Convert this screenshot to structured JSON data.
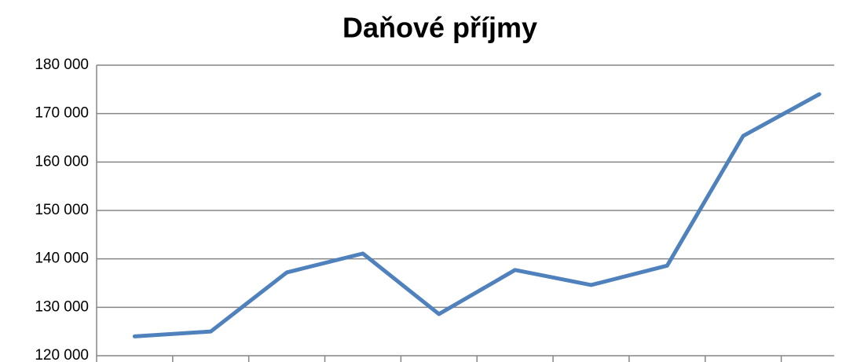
{
  "chart_data": {
    "type": "line",
    "title": "Daňové příjmy",
    "categories": [
      null,
      null,
      null,
      null,
      null,
      null,
      null,
      null,
      null,
      null
    ],
    "series": [
      {
        "name": null,
        "color": "#4f81bd",
        "values": [
          124000,
          125000,
          137200,
          141100,
          128600,
          137700,
          134600,
          138600,
          165400,
          174000
        ]
      }
    ],
    "ylim": [
      120000,
      180000
    ],
    "yticks": [
      {
        "value": 120000,
        "label": "120 000"
      },
      {
        "value": 130000,
        "label": "130 000"
      },
      {
        "value": 140000,
        "label": "140 000"
      },
      {
        "value": 150000,
        "label": "150 000"
      },
      {
        "value": 160000,
        "label": "160 000"
      },
      {
        "value": 170000,
        "label": "170 000"
      },
      {
        "value": 180000,
        "label": "180 000"
      }
    ],
    "grid": true
  }
}
